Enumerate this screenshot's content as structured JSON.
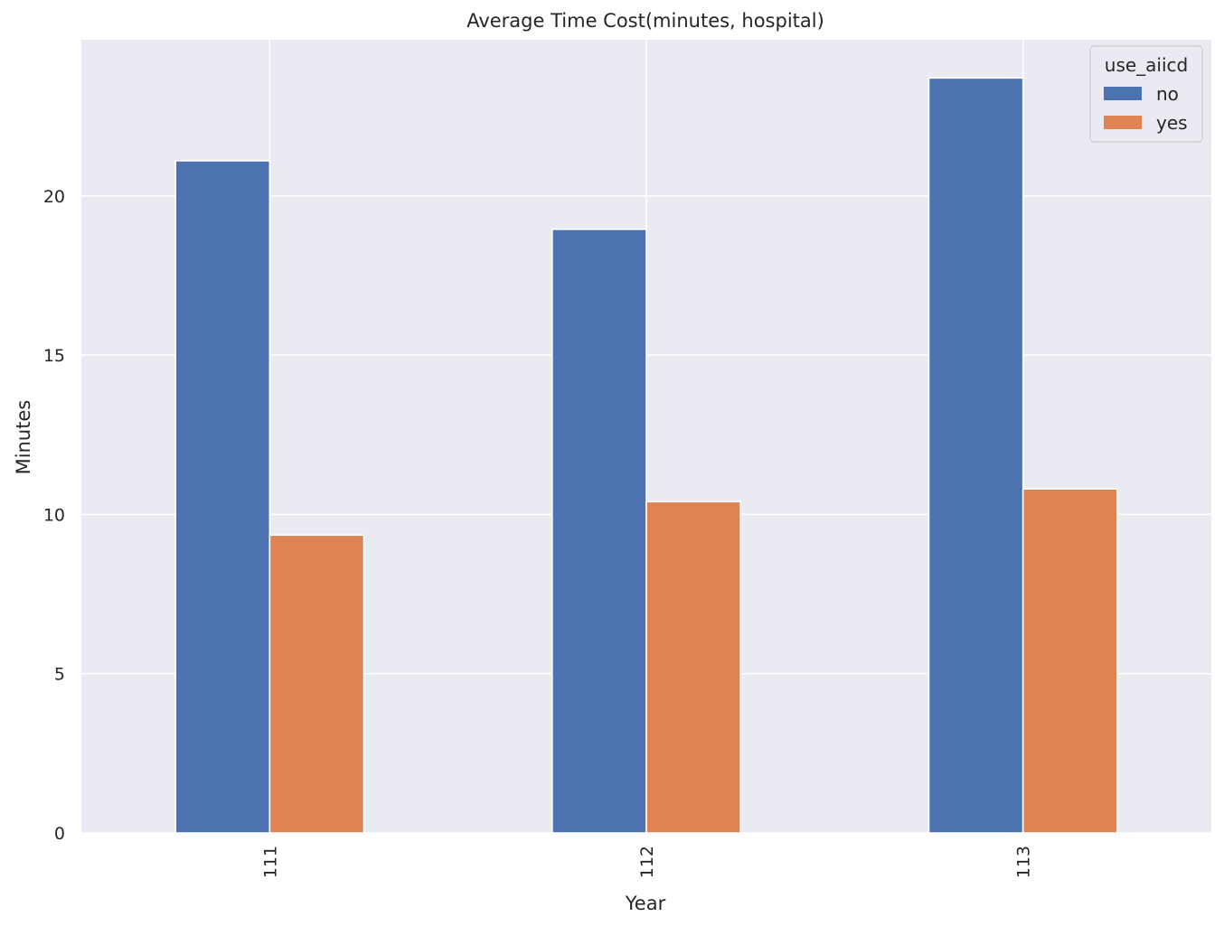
{
  "chart_data": {
    "type": "bar",
    "title": "Average Time Cost(minutes, hospital)",
    "xlabel": "Year",
    "ylabel": "Minutes",
    "categories": [
      "111",
      "112",
      "113"
    ],
    "series": [
      {
        "name": "no",
        "values": [
          21.1,
          18.95,
          23.7
        ],
        "color": "#4c72b0"
      },
      {
        "name": "yes",
        "values": [
          9.35,
          10.4,
          10.8
        ],
        "color": "#dd8452"
      }
    ],
    "ylim": [
      0,
      24.9
    ],
    "yticks": [
      0,
      5,
      10,
      15,
      20
    ],
    "grid": true,
    "background": "#eaeaf2",
    "legend": {
      "title": "use_aiicd",
      "position": "top-right"
    }
  }
}
